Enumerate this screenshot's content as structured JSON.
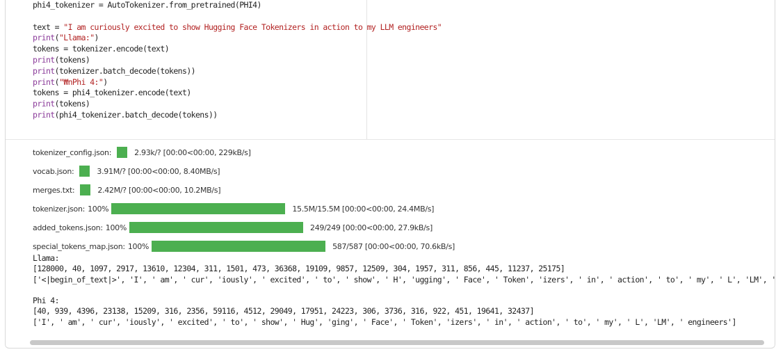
{
  "code": {
    "lines": [
      [
        {
          "t": "phi4_tokenizer = AutoTokenizer.from_pretrained(PHI4)",
          "k": "plain"
        }
      ],
      [],
      [
        {
          "t": "text = ",
          "k": "plain"
        },
        {
          "t": "\"I am curiously excited to show Hugging Face Tokenizers in action to my LLM engineers\"",
          "k": "string"
        }
      ],
      [
        {
          "t": "print",
          "k": "builtin"
        },
        {
          "t": "(",
          "k": "plain"
        },
        {
          "t": "\"Llama:\"",
          "k": "string"
        },
        {
          "t": ")",
          "k": "plain"
        }
      ],
      [
        {
          "t": "tokens = tokenizer.encode(text)",
          "k": "plain"
        }
      ],
      [
        {
          "t": "print",
          "k": "builtin"
        },
        {
          "t": "(tokens)",
          "k": "plain"
        }
      ],
      [
        {
          "t": "print",
          "k": "builtin"
        },
        {
          "t": "(tokenizer.batch_decode(tokens))",
          "k": "plain"
        }
      ],
      [
        {
          "t": "print",
          "k": "builtin"
        },
        {
          "t": "(",
          "k": "plain"
        },
        {
          "t": "\"₩nPhi 4:\"",
          "k": "string"
        },
        {
          "t": ")",
          "k": "plain"
        }
      ],
      [
        {
          "t": "tokens = phi4_tokenizer.encode(text)",
          "k": "plain"
        }
      ],
      [
        {
          "t": "print",
          "k": "builtin"
        },
        {
          "t": "(tokens)",
          "k": "plain"
        }
      ],
      [
        {
          "t": "print",
          "k": "builtin"
        },
        {
          "t": "(phi4_tokenizer.batch_decode(tokens))",
          "k": "plain"
        }
      ]
    ]
  },
  "progress": [
    {
      "label": "tokenizer_config.json:",
      "pct": "",
      "fill": 0.06,
      "stats": "2.93k/? [00:00<00:00, 229kB/s]"
    },
    {
      "label": "vocab.json:",
      "pct": "",
      "fill": 0.06,
      "stats": "3.91M/? [00:00<00:00, 8.40MB/s]"
    },
    {
      "label": "merges.txt:",
      "pct": "",
      "fill": 0.06,
      "stats": "2.42M/? [00:00<00:00, 10.2MB/s]"
    },
    {
      "label": "tokenizer.json:",
      "pct": "100%",
      "fill": 1.0,
      "stats": "15.5M/15.5M [00:00<00:00, 24.4MB/s]"
    },
    {
      "label": "added_tokens.json:",
      "pct": "100%",
      "fill": 1.0,
      "stats": "249/249 [00:00<00:00, 27.9kB/s]"
    },
    {
      "label": "special_tokens_map.json:",
      "pct": "100%",
      "fill": 1.0,
      "stats": "587/587 [00:00<00:00, 70.6kB/s]"
    }
  ],
  "output": {
    "lines": [
      "Llama:",
      "[128000, 40, 1097, 2917, 13610, 12304, 311, 1501, 473, 36368, 19109, 9857, 12509, 304, 1957, 311, 856, 445, 11237, 25175]",
      "['<|begin_of_text|>', 'I', ' am', ' cur', 'iously', ' excited', ' to', ' show', ' H', 'ugging', ' Face', ' Token', 'izers', ' in', ' action', ' to', ' my', ' L', 'LM', ' engineers']",
      "",
      "Phi 4:",
      "[40, 939, 4396, 23138, 15209, 316, 2356, 59116, 4512, 29049, 17951, 24223, 306, 3736, 316, 922, 451, 19641, 32437]",
      "['I', ' am', ' cur', 'iously', ' excited', ' to', ' show', ' Hug', 'ging', ' Face', ' Token', 'izers', ' in', ' action', ' to', ' my', ' L', 'LM', ' engineers']"
    ]
  },
  "colors": {
    "progress_bar": "#4caf50",
    "builtin": "#8a3a99",
    "string": "#b22222"
  }
}
